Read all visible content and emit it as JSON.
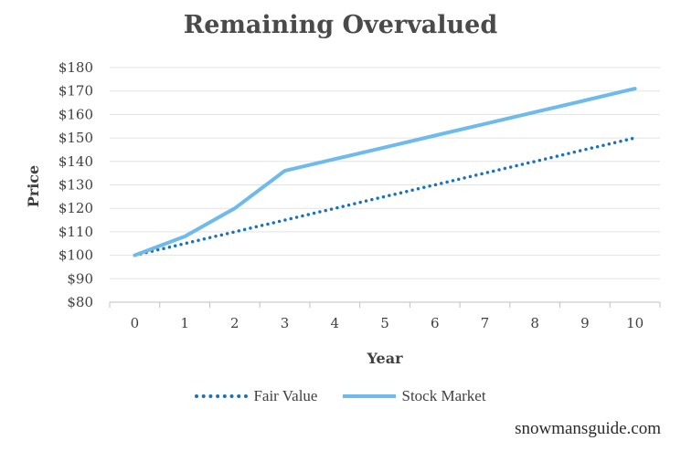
{
  "chart_data": {
    "type": "line",
    "title": "Remaining Overvalued",
    "xlabel": "Year",
    "ylabel": "Price",
    "x": [
      0,
      1,
      2,
      3,
      4,
      5,
      6,
      7,
      8,
      9,
      10
    ],
    "x_tick_labels": [
      "0",
      "1",
      "2",
      "3",
      "4",
      "5",
      "6",
      "7",
      "8",
      "9",
      "10"
    ],
    "y_tick_labels": [
      "$80",
      "$90",
      "$100",
      "$110",
      "$120",
      "$130",
      "$140",
      "$150",
      "$160",
      "$170",
      "$180"
    ],
    "ylim": [
      80,
      180
    ],
    "grid": true,
    "legend_position": "bottom",
    "series": [
      {
        "name": "Fair Value",
        "style": "dotted",
        "color": "#1a72b8",
        "values": [
          100,
          105,
          110,
          115,
          120,
          125,
          130,
          135,
          140,
          145,
          150
        ]
      },
      {
        "name": "Stock Market",
        "style": "solid",
        "color": "#6ebaec",
        "values": [
          100,
          108,
          120,
          136,
          141,
          146,
          151,
          156,
          161,
          166,
          171
        ]
      }
    ]
  },
  "watermark": "snowmansguide.com"
}
